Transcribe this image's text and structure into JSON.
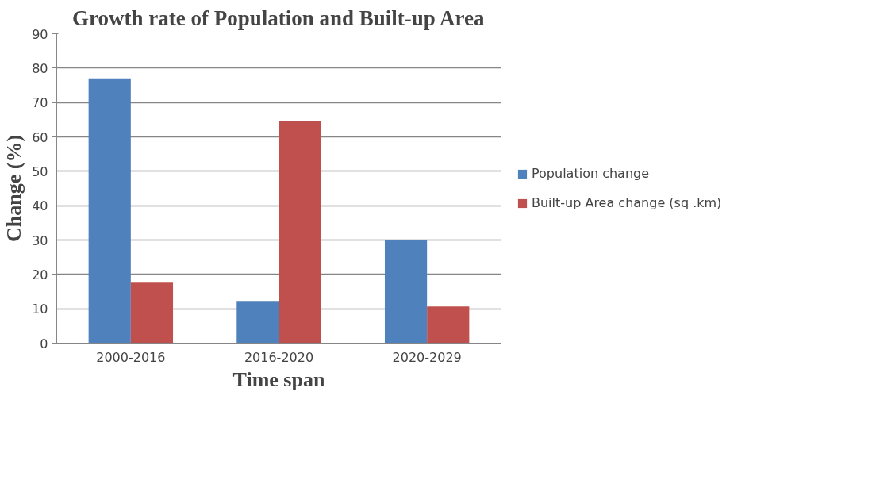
{
  "chart_data": {
    "type": "bar",
    "title": "Growth rate of Population and Built-up Area",
    "xlabel": "Time span",
    "ylabel": "Change (%)",
    "categories": [
      "2000-2016",
      "2016-2020",
      "2020-2029"
    ],
    "series": [
      {
        "name": "Population change",
        "color": "#4f81bd",
        "values": [
          77.0,
          12.3,
          30.0
        ]
      },
      {
        "name": "Built-up Area change (sq .km)",
        "color": "#c0504d",
        "values": [
          17.6,
          64.6,
          10.7
        ]
      }
    ],
    "ylim": [
      0,
      90
    ],
    "yticks": [
      0,
      10,
      20,
      30,
      40,
      50,
      60,
      70,
      80,
      90
    ],
    "grid": "y",
    "legend": "right"
  }
}
